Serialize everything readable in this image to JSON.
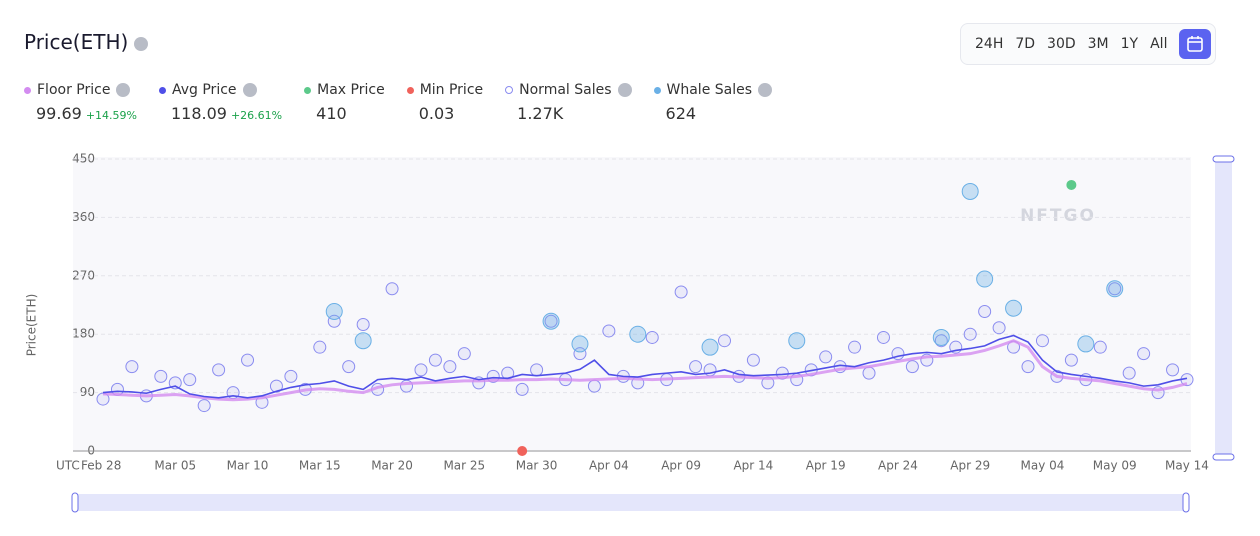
{
  "header": {
    "title": "Price(ETH)",
    "ranges": [
      "24H",
      "7D",
      "30D",
      "3M",
      "1Y",
      "All"
    ]
  },
  "stats": [
    {
      "name": "Floor Price",
      "color": "#d38cf0",
      "value": "99.69",
      "change": "+14.59%"
    },
    {
      "name": "Avg Price",
      "color": "#4f4fe8",
      "value": "118.09",
      "change": "+26.61%"
    },
    {
      "name": "Max Price",
      "color": "#5cc98a",
      "value": "410"
    },
    {
      "name": "Min Price",
      "color": "#f0625b",
      "value": "0.03"
    },
    {
      "name": "Normal Sales",
      "color": "#8a8cf0",
      "value": "1.27K"
    },
    {
      "name": "Whale Sales",
      "color": "#6ab0e6",
      "value": "624"
    }
  ],
  "chart_data": {
    "type": "line",
    "y_label": "Price(ETH)",
    "x_label": "UTC",
    "watermark": "NFTGO",
    "categories": [
      "Feb 28",
      null,
      null,
      null,
      null,
      "Mar 05",
      null,
      null,
      null,
      null,
      "Mar 10",
      null,
      null,
      null,
      null,
      "Mar 15",
      null,
      null,
      null,
      null,
      "Mar 20",
      null,
      null,
      null,
      null,
      "Mar 25",
      null,
      null,
      null,
      null,
      "Mar 30",
      null,
      null,
      null,
      null,
      "Apr 04",
      null,
      null,
      null,
      null,
      "Apr 09",
      null,
      null,
      null,
      null,
      "Apr 14",
      null,
      null,
      null,
      null,
      "Apr 19",
      null,
      null,
      null,
      null,
      "Apr 24",
      null,
      null,
      null,
      null,
      "Apr 29",
      null,
      null,
      null,
      null,
      "May 04",
      null,
      null,
      null,
      null,
      "May 09",
      null,
      null,
      null,
      null,
      "May 14"
    ],
    "ylim": [
      0,
      450
    ],
    "yticks": [
      0,
      90,
      180,
      270,
      360,
      450
    ],
    "grid": true,
    "series": [
      {
        "name": "Floor Price",
        "kind": "line",
        "color": "#d38cf0",
        "values": [
          88,
          87,
          86,
          85,
          86,
          87,
          85,
          82,
          80,
          79,
          80,
          82,
          86,
          90,
          94,
          96,
          95,
          92,
          90,
          98,
          102,
          104,
          105,
          106,
          107,
          108,
          108,
          109,
          109,
          110,
          110,
          111,
          110,
          109,
          110,
          111,
          112,
          111,
          110,
          111,
          112,
          113,
          114,
          115,
          114,
          113,
          112,
          113,
          115,
          118,
          122,
          126,
          128,
          130,
          134,
          138,
          142,
          145,
          146,
          148,
          150,
          155,
          162,
          170,
          160,
          130,
          115,
          112,
          110,
          108,
          104,
          100,
          96,
          94,
          98,
          104
        ]
      },
      {
        "name": "Avg Price",
        "kind": "line",
        "color": "#4f4fe8",
        "values": [
          90,
          92,
          91,
          89,
          95,
          100,
          88,
          84,
          82,
          85,
          82,
          85,
          92,
          98,
          102,
          104,
          108,
          100,
          95,
          110,
          112,
          110,
          114,
          108,
          112,
          115,
          110,
          113,
          112,
          118,
          116,
          118,
          120,
          126,
          140,
          118,
          115,
          114,
          118,
          120,
          122,
          118,
          120,
          125,
          118,
          116,
          117,
          118,
          120,
          124,
          128,
          132,
          130,
          136,
          140,
          146,
          150,
          152,
          150,
          155,
          158,
          162,
          172,
          178,
          168,
          140,
          122,
          118,
          115,
          112,
          108,
          105,
          100,
          102,
          108,
          112
        ]
      },
      {
        "name": "Normal Sales",
        "kind": "scatter",
        "color": "#8a8cf0",
        "values": [
          80,
          95,
          130,
          85,
          115,
          105,
          110,
          70,
          125,
          90,
          140,
          75,
          100,
          115,
          95,
          160,
          200,
          130,
          195,
          95,
          250,
          100,
          125,
          140,
          130,
          150,
          105,
          115,
          120,
          95,
          125,
          200,
          110,
          150,
          100,
          185,
          115,
          105,
          175,
          110,
          245,
          130,
          125,
          170,
          115,
          140,
          105,
          120,
          110,
          125,
          145,
          130,
          160,
          120,
          175,
          150,
          130,
          140,
          170,
          160,
          180,
          215,
          190,
          160,
          130,
          170,
          115,
          140,
          110,
          160,
          250,
          120,
          150,
          90,
          125,
          110
        ]
      },
      {
        "name": "Whale Sales",
        "kind": "whale",
        "color": "#6ab0e6",
        "values": [
          null,
          null,
          null,
          null,
          null,
          null,
          null,
          null,
          null,
          null,
          null,
          null,
          null,
          null,
          null,
          null,
          215,
          null,
          170,
          null,
          null,
          null,
          null,
          null,
          null,
          null,
          null,
          null,
          null,
          null,
          null,
          200,
          null,
          165,
          null,
          null,
          null,
          180,
          null,
          null,
          null,
          null,
          160,
          null,
          null,
          null,
          null,
          null,
          170,
          null,
          null,
          null,
          null,
          null,
          null,
          null,
          null,
          null,
          175,
          null,
          400,
          265,
          null,
          220,
          null,
          null,
          null,
          null,
          165,
          null,
          250,
          null,
          null,
          null,
          null,
          null
        ]
      },
      {
        "name": "Max Price",
        "kind": "dot",
        "color": "#5cc98a",
        "values": [
          null,
          null,
          null,
          null,
          null,
          null,
          null,
          null,
          null,
          null,
          null,
          null,
          null,
          null,
          null,
          null,
          null,
          null,
          null,
          null,
          null,
          null,
          null,
          null,
          null,
          null,
          null,
          null,
          null,
          null,
          null,
          null,
          null,
          null,
          null,
          null,
          null,
          null,
          null,
          null,
          null,
          null,
          null,
          null,
          null,
          null,
          null,
          null,
          null,
          null,
          null,
          null,
          null,
          null,
          null,
          null,
          null,
          null,
          null,
          null,
          null,
          null,
          null,
          null,
          null,
          null,
          null,
          410,
          null,
          null,
          null,
          null,
          null,
          null,
          null,
          null
        ]
      },
      {
        "name": "Min Price",
        "kind": "dot",
        "color": "#f0625b",
        "values": [
          null,
          null,
          null,
          null,
          null,
          null,
          null,
          null,
          null,
          null,
          null,
          null,
          null,
          null,
          null,
          null,
          null,
          null,
          null,
          null,
          null,
          null,
          null,
          null,
          null,
          null,
          null,
          null,
          null,
          0.03,
          null,
          null,
          null,
          null,
          null,
          null,
          null,
          null,
          null,
          null,
          null,
          null,
          null,
          null,
          null,
          null,
          null,
          null,
          null,
          null,
          null,
          null,
          null,
          null,
          null,
          null,
          null,
          null,
          null,
          null,
          null,
          null,
          null,
          null,
          null,
          null,
          null,
          null,
          null,
          null,
          null,
          null,
          null,
          null,
          null,
          null
        ]
      }
    ]
  }
}
